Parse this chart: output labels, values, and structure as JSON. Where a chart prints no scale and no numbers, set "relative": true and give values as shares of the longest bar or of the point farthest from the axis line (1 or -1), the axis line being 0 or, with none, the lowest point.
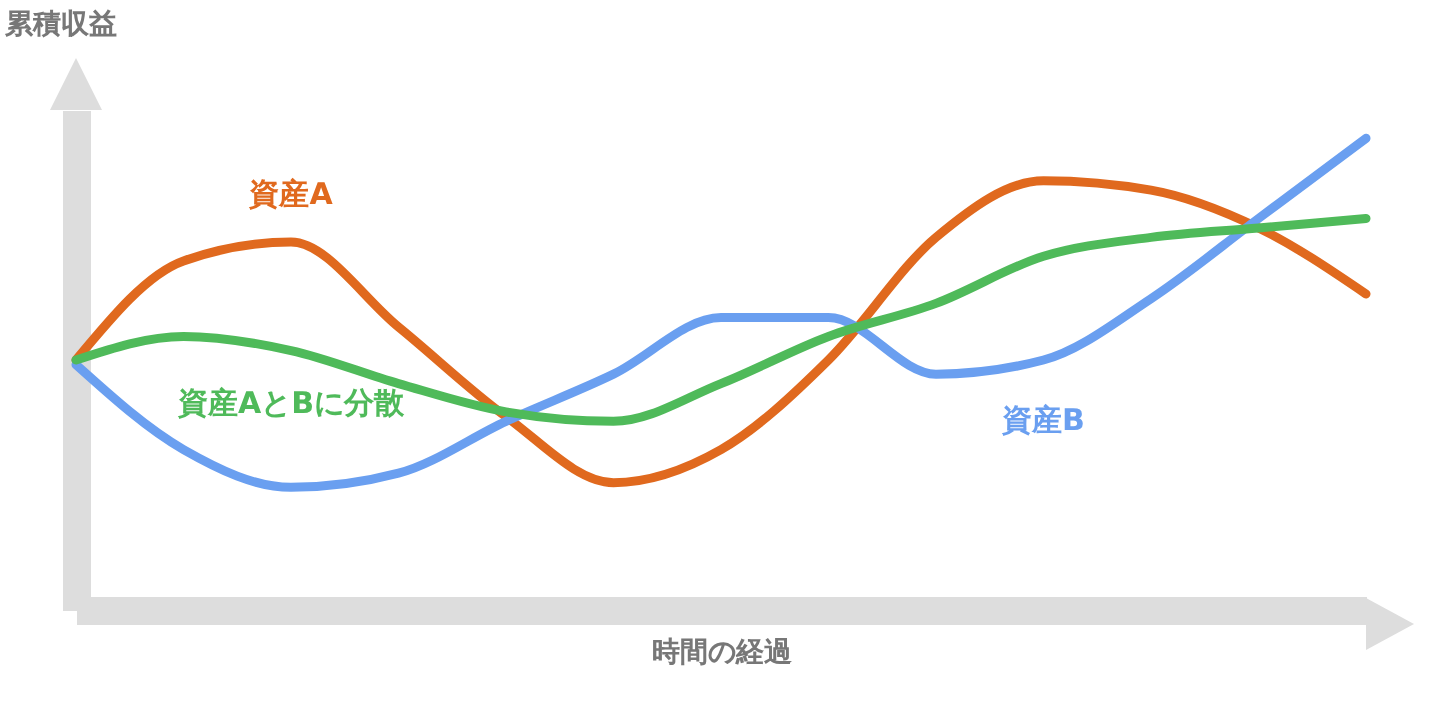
{
  "chart_data": {
    "type": "line",
    "relative": true,
    "xlabel": "時間の経過",
    "ylabel": "累積収益",
    "legend": false,
    "marker": "none",
    "line_style": "solid",
    "categories": [
      null,
      null,
      null,
      null,
      null,
      null,
      null,
      null,
      null,
      null,
      null,
      null,
      null
    ],
    "series": [
      {
        "name": "資産A",
        "color": "#e0691e",
        "values": [
          0.53,
          0.74,
          0.78,
          0.6,
          0.41,
          0.27,
          0.34,
          0.53,
          0.79,
          0.91,
          0.89,
          0.81,
          0.67
        ]
      },
      {
        "name": "資産B",
        "color": "#6a9ff0",
        "values": [
          0.52,
          0.34,
          0.26,
          0.29,
          0.4,
          0.5,
          0.62,
          0.62,
          0.5,
          0.53,
          0.66,
          0.83,
          1
        ]
      },
      {
        "name": "資産AとBに分散",
        "color": "#4fba5a",
        "values": [
          0.53,
          0.58,
          0.55,
          0.48,
          0.42,
          0.4,
          0.48,
          0.58,
          0.65,
          0.75,
          0.79,
          0.81,
          0.83
        ]
      }
    ]
  }
}
